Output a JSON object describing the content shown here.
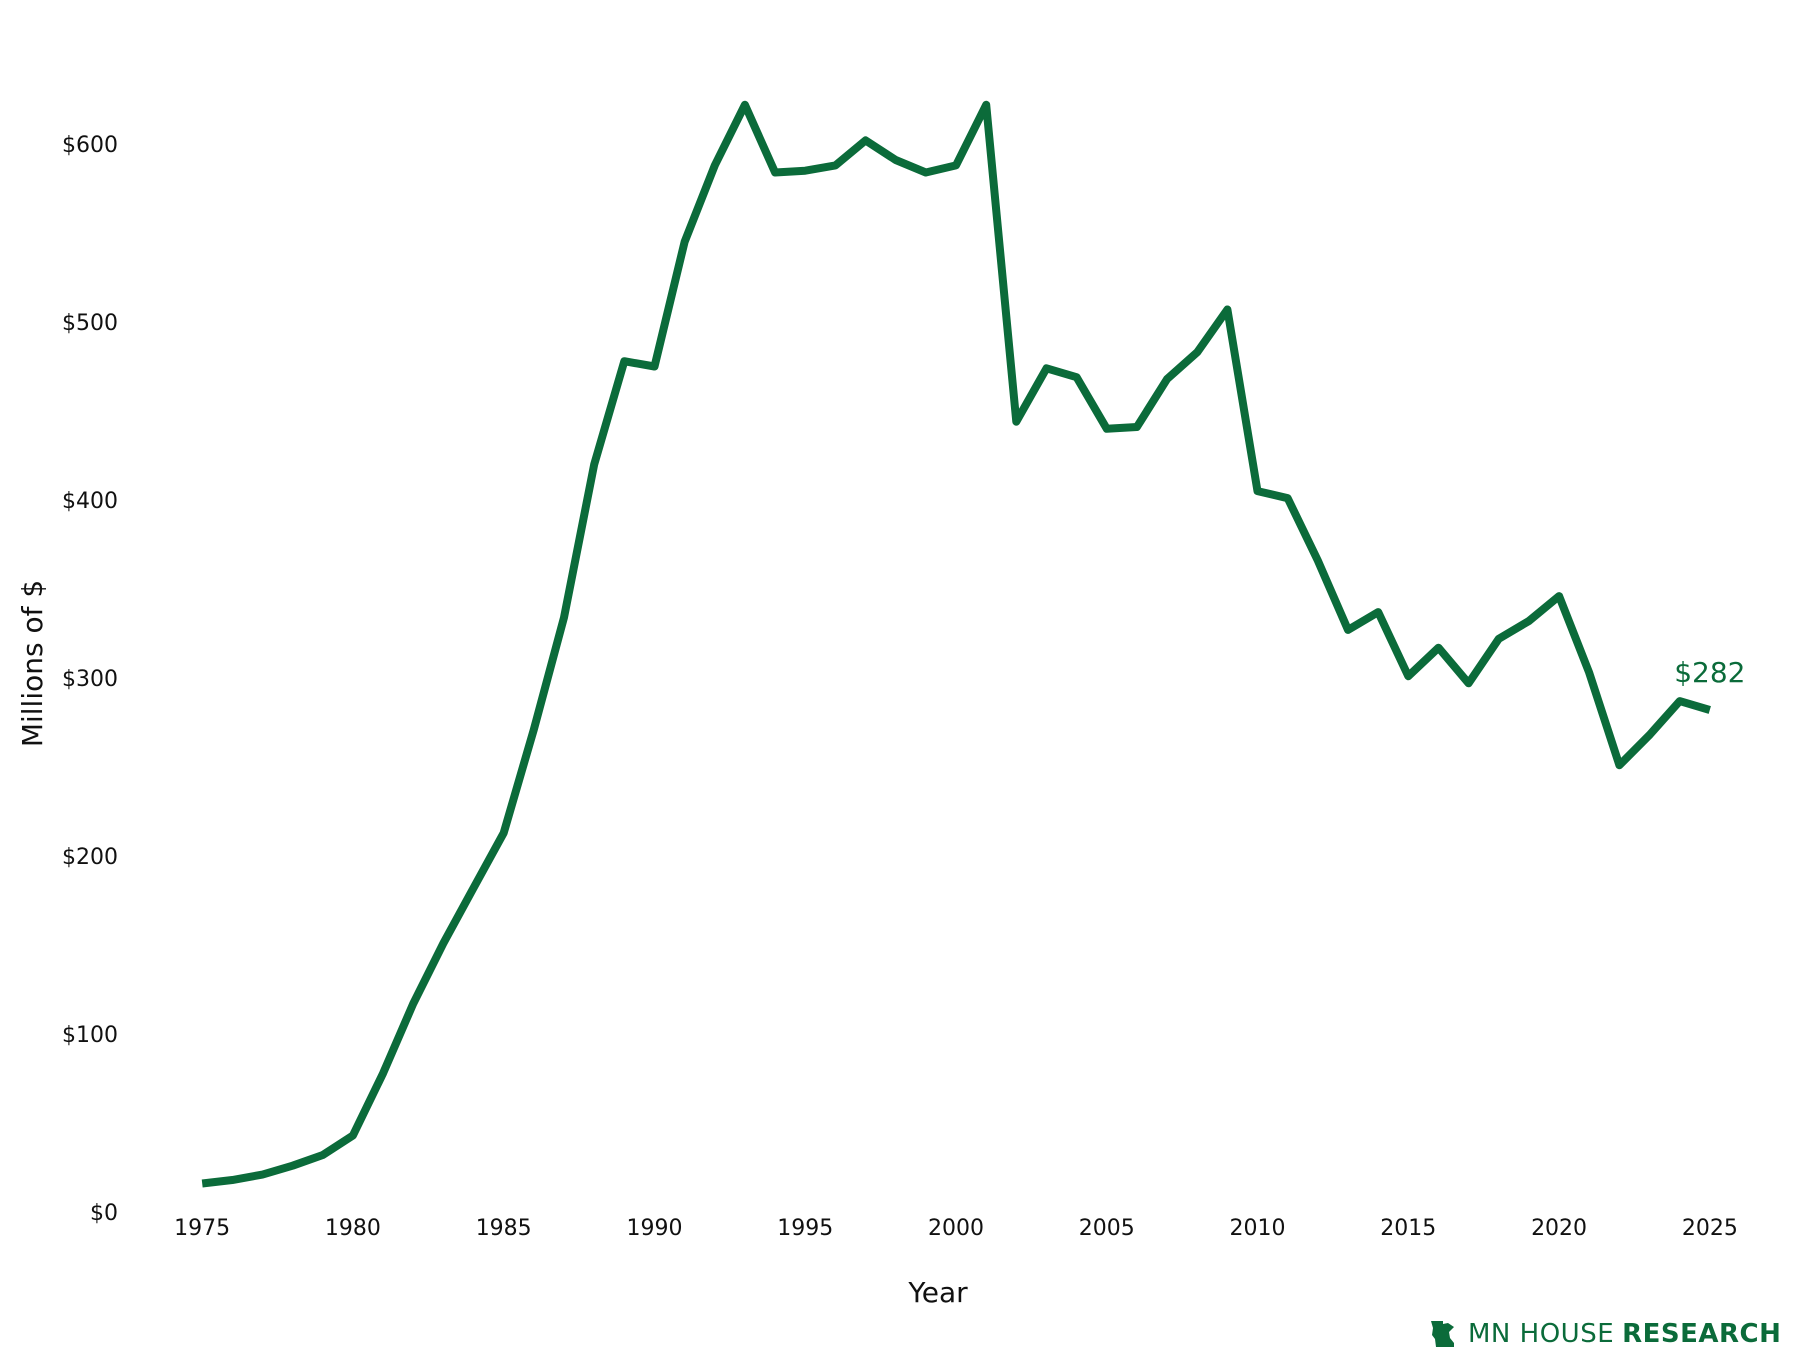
{
  "chart_data": {
    "type": "line",
    "title": "",
    "xlabel": "Year",
    "ylabel": "Millions of $",
    "xlim": [
      1974,
      2026
    ],
    "ylim": [
      0,
      650
    ],
    "x_ticks": [
      1975,
      1980,
      1985,
      1990,
      1995,
      2000,
      2005,
      2010,
      2015,
      2020,
      2025
    ],
    "y_ticks": [
      0,
      100,
      200,
      300,
      400,
      500,
      600
    ],
    "y_tick_labels": [
      "$0",
      "$100",
      "$200",
      "$300",
      "$400",
      "$500",
      "$600"
    ],
    "x_tick_labels": [
      "1975",
      "1980",
      "1985",
      "1990",
      "1995",
      "2000",
      "2005",
      "2010",
      "2015",
      "2020",
      "2025"
    ],
    "grid": false,
    "legend": "none",
    "series": [
      {
        "color": "#0b6b3a",
        "x": [
          1975,
          1976,
          1977,
          1978,
          1979,
          1980,
          1981,
          1982,
          1983,
          1984,
          1985,
          1986,
          1987,
          1988,
          1989,
          1990,
          1991,
          1992,
          1993,
          1994,
          1995,
          1996,
          1997,
          1998,
          1999,
          2000,
          2001,
          2002,
          2003,
          2004,
          2005,
          2006,
          2007,
          2008,
          2009,
          2010,
          2011,
          2012,
          2013,
          2014,
          2015,
          2016,
          2017,
          2018,
          2019,
          2020,
          2021,
          2022,
          2023,
          2024,
          2025
        ],
        "y": [
          16,
          18,
          21,
          26,
          32,
          43,
          78,
          117,
          151,
          182,
          213,
          271,
          334,
          420,
          478,
          475,
          545,
          588,
          622,
          584,
          585,
          588,
          602,
          591,
          584,
          588,
          622,
          444,
          474,
          469,
          440,
          441,
          468,
          483,
          507,
          405,
          401,
          366,
          327,
          337,
          301,
          317,
          297,
          322,
          332,
          346,
          303,
          251,
          268,
          287,
          282
        ]
      }
    ],
    "end_label": "$282"
  },
  "logo": {
    "text_light": "MN HOUSE",
    "text_bold": "RESEARCH"
  }
}
